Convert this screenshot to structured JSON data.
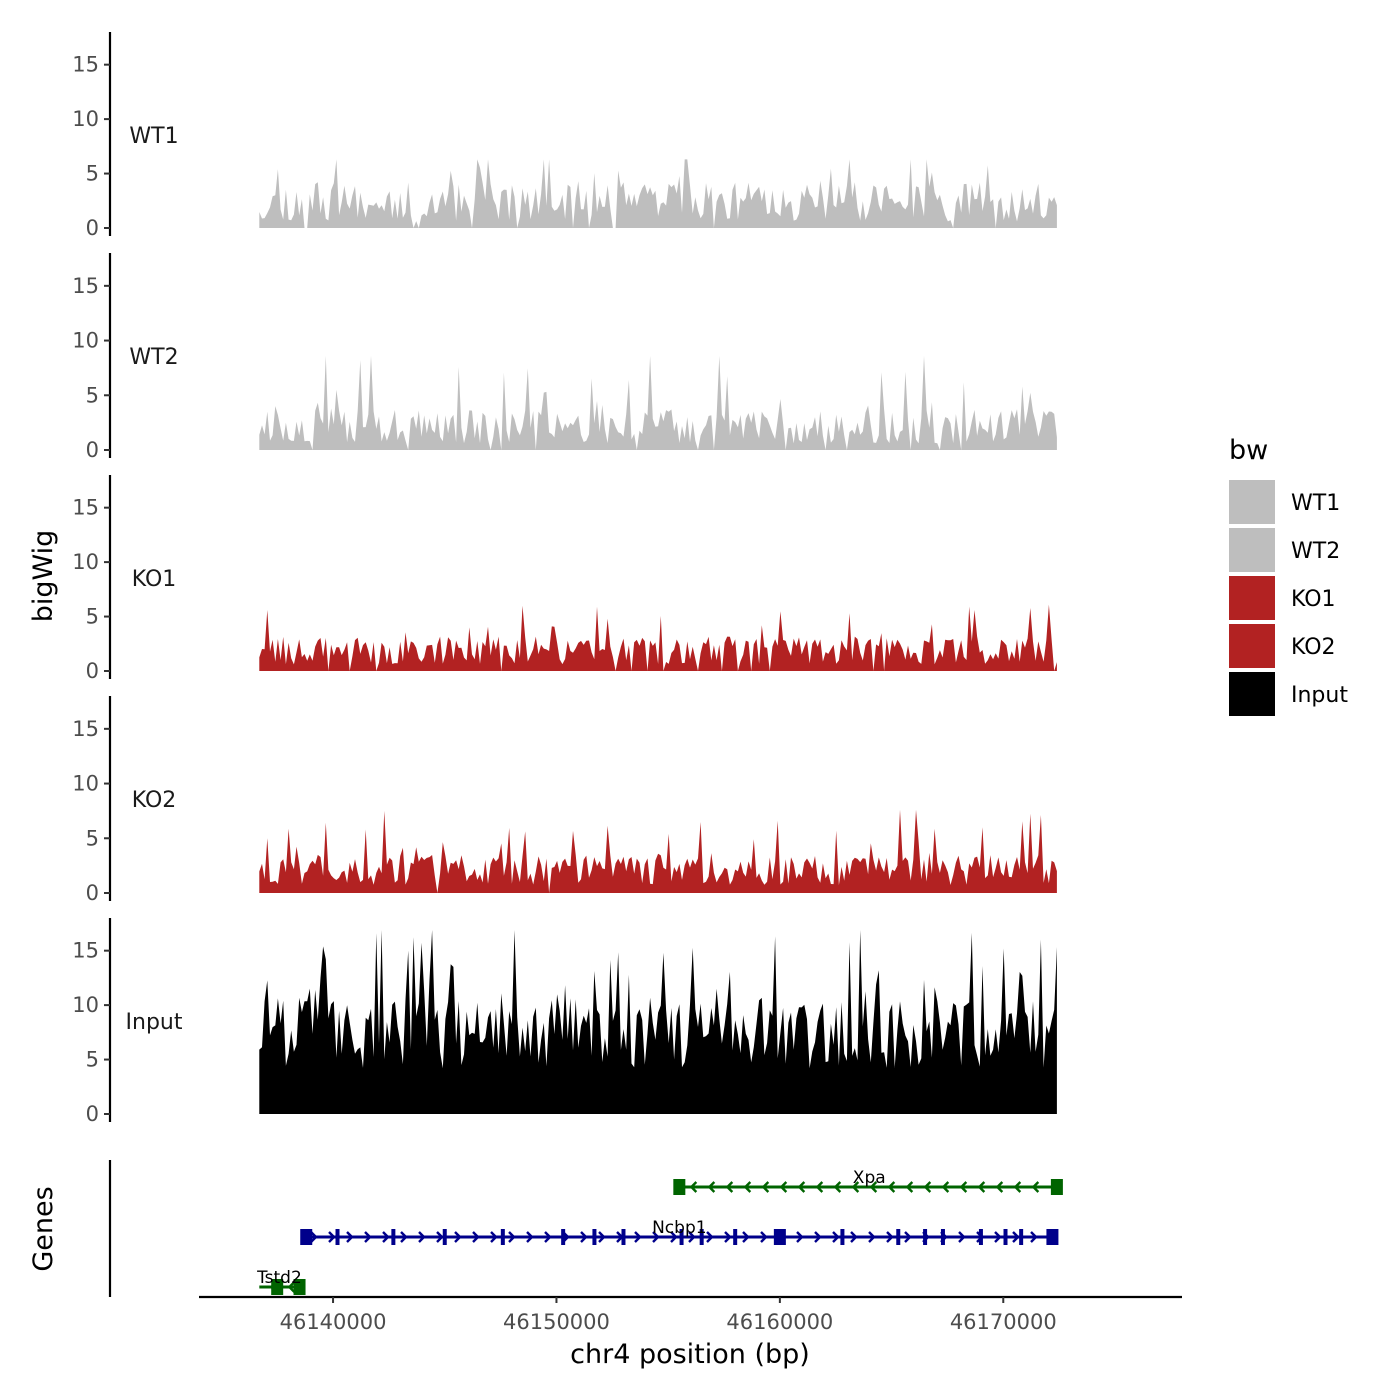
{
  "chart_data": {
    "type": "area",
    "title": "",
    "xlabel": "chr4 position (bp)",
    "ylabel": "bigWig",
    "genes_label": "Genes",
    "xlim": [
      46134000,
      46178000
    ],
    "ylim": [
      0,
      18
    ],
    "x_ticks": [
      46140000,
      46150000,
      46160000,
      46170000
    ],
    "x_tick_labels": [
      "46140000",
      "46150000",
      "46160000",
      "46170000"
    ],
    "y_ticks": [
      0,
      5,
      10,
      15
    ],
    "y_tick_labels": [
      "0",
      "5",
      "10",
      "15"
    ],
    "data_range": [
      46136700,
      46172400
    ],
    "legend": {
      "title": "bw",
      "placement": "right",
      "entries": [
        {
          "label": "WT1",
          "color": "#bebebe"
        },
        {
          "label": "WT2",
          "color": "#bebebe"
        },
        {
          "label": "KO1",
          "color": "#b22222"
        },
        {
          "label": "KO2",
          "color": "#b22222"
        },
        {
          "label": "Input",
          "color": "#000000"
        }
      ]
    },
    "series": [
      {
        "name": "WT1",
        "color": "#bebebe",
        "seed": 11,
        "base": 0.6,
        "peak": 3.6,
        "spike_prob": 0.1,
        "spike": 5.5,
        "max": 6.3,
        "gap_prob": 0.06,
        "highlights": [
          [
            46137500,
            5.4
          ],
          [
            46165800,
            6.3
          ],
          [
            46139300,
            4.2
          ],
          [
            46151000,
            4.3
          ],
          [
            46166800,
            5.1
          ]
        ]
      },
      {
        "name": "WT2",
        "color": "#bebebe",
        "seed": 23,
        "base": 0.6,
        "peak": 3.2,
        "spike_prob": 0.1,
        "spike": 6.2,
        "max": 8.6,
        "gap_prob": 0.03,
        "highlights": [
          [
            46141700,
            8.6
          ],
          [
            46164500,
            7.1
          ],
          [
            46153300,
            6.4
          ],
          [
            46140100,
            5.5
          ],
          [
            46168200,
            6.2
          ]
        ]
      },
      {
        "name": "KO1",
        "color": "#b22222",
        "seed": 37,
        "base": 0.6,
        "peak": 2.6,
        "spike_prob": 0.08,
        "spike": 4.6,
        "max": 6.1,
        "gap_prob": 0.07,
        "highlights": [
          [
            46148500,
            6.0
          ],
          [
            46151800,
            5.9
          ],
          [
            46163100,
            5.3
          ],
          [
            46168700,
            5.6
          ],
          [
            46152300,
            4.8
          ]
        ]
      },
      {
        "name": "KO2",
        "color": "#b22222",
        "seed": 53,
        "base": 0.7,
        "peak": 2.8,
        "spike_prob": 0.1,
        "spike": 5.0,
        "max": 7.6,
        "gap_prob": 0.02,
        "highlights": [
          [
            46142300,
            7.5
          ],
          [
            46166100,
            7.6
          ],
          [
            46159900,
            6.6
          ],
          [
            46141500,
            5.8
          ],
          [
            46155000,
            5.4
          ]
        ]
      },
      {
        "name": "Input",
        "color": "#000000",
        "seed": 71,
        "base": 4.2,
        "peak": 6.5,
        "spike_prob": 0.12,
        "spike": 10.5,
        "max": 16.9,
        "gap_prob": 0.0,
        "highlights": [
          [
            46142200,
            16.9
          ],
          [
            46154800,
            14.8
          ],
          [
            46170800,
            12.7
          ],
          [
            46139400,
            12.5
          ],
          [
            46150000,
            11.0
          ],
          [
            46144100,
            11.3
          ],
          [
            46164300,
            11.9
          ]
        ]
      }
    ],
    "genes": [
      {
        "name": "Xpa",
        "start": 46155500,
        "end": 46172400,
        "strand": "-",
        "color": "#006400",
        "exons": [
          46155500,
          46172400
        ],
        "label_x": 46164000
      },
      {
        "name": "Ncbp1",
        "start": 46138700,
        "end": 46172400,
        "strand": "+",
        "color": "#00008b",
        "exons": [
          46138800,
          46140200,
          46142700,
          46145000,
          46147600,
          46150300,
          46151700,
          46153000,
          46155600,
          46156500,
          46158000,
          46160000,
          46162800,
          46165300,
          46166500,
          46167300,
          46169000,
          46170100,
          46170800,
          46172200
        ],
        "label_x": 46155500
      },
      {
        "name": "Tstd2",
        "start": 46136700,
        "end": 46138700,
        "strand": "-",
        "color": "#006400",
        "exons": [
          46137500,
          46138500
        ],
        "label_x": 46137600
      }
    ]
  }
}
